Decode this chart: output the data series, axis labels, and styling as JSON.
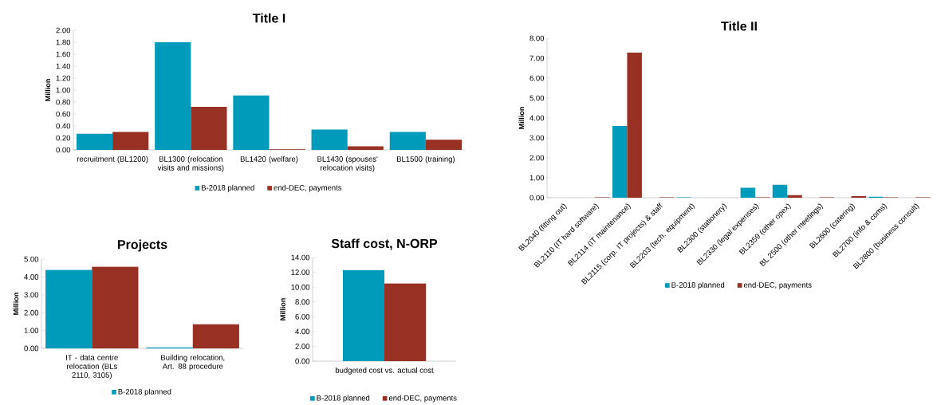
{
  "chart_data": [
    {
      "type": "bar",
      "title": "Title I",
      "ylabel": "Million",
      "categories": [
        "recruitment (BL1200)",
        "BL1300  (relocation visits and missions)",
        "BL1420 (welfare)",
        "BL1430 (spouses' relocation visits)",
        "BL1500 (training)"
      ],
      "series": [
        {
          "name": "B-2018 planned",
          "color": "#009bbb",
          "values": [
            0.27,
            1.8,
            0.91,
            0.34,
            0.3
          ]
        },
        {
          "name": "end-DEC, payments",
          "color": "#983123",
          "values": [
            0.3,
            0.72,
            0.01,
            0.06,
            0.17
          ]
        }
      ],
      "ylim": [
        0,
        2
      ],
      "yticks": [
        {
          "value": 0,
          "label": "0.00"
        },
        {
          "value": 0.2,
          "label": "0.20"
        },
        {
          "value": 0.4,
          "label": "0.40"
        },
        {
          "value": 0.6,
          "label": "0.60"
        },
        {
          "value": 0.8,
          "label": "0.80"
        },
        {
          "value": 1.0,
          "label": "1.00"
        },
        {
          "value": 1.2,
          "label": "1.20"
        },
        {
          "value": 1.4,
          "label": "1.40"
        },
        {
          "value": 1.6,
          "label": "1.60"
        },
        {
          "value": 1.8,
          "label": "1.80"
        },
        {
          "value": 2.0,
          "label": "2.00"
        }
      ],
      "legend": "bottom"
    },
    {
      "type": "bar",
      "title": "Title II",
      "ylabel": "Million",
      "categories": [
        "BL2040 (fitting out)",
        "BL2110 (IT hard software)",
        "BL2114 (IT maintenance)",
        "BL2115 (corp. IT projects) & staff",
        "BL2203 (tech. equipment)",
        "BL2300 (stationery)",
        "BL2330 (legal expenses)",
        "BL2359 (other opex)",
        "BL 2500 (other meetings)",
        "BL2600 (catering)",
        "BL2700 (info & coms)",
        "BL2800 (business consult)"
      ],
      "series": [
        {
          "name": "B-2018 planned",
          "color": "#009bbb",
          "values": [
            0,
            0,
            3.6,
            0,
            0.02,
            0,
            0.5,
            0.65,
            0,
            0,
            0.05,
            0
          ]
        },
        {
          "name": "end-DEC, payments",
          "color": "#983123",
          "values": [
            0,
            0.02,
            7.28,
            0.02,
            0,
            0,
            0.02,
            0.13,
            0.02,
            0.08,
            0.02,
            0.02
          ]
        }
      ],
      "ylim": [
        0,
        8
      ],
      "yticks": [
        {
          "value": 0,
          "label": "0.00"
        },
        {
          "value": 1,
          "label": "1.00"
        },
        {
          "value": 2,
          "label": "2.00"
        },
        {
          "value": 3,
          "label": "3.00"
        },
        {
          "value": 4,
          "label": "4.00"
        },
        {
          "value": 5,
          "label": "5.00"
        },
        {
          "value": 6,
          "label": "6.00"
        },
        {
          "value": 7,
          "label": "7.00"
        },
        {
          "value": 8,
          "label": "8.00"
        }
      ],
      "legend": "bottom"
    },
    {
      "type": "bar",
      "title": "Projects",
      "ylabel": "Million",
      "categories": [
        "IT - data centre relocation (BLs 2110, 3105)",
        "Building relocation, Art. 88 procedure"
      ],
      "series": [
        {
          "name": "B-2018 planned",
          "color": "#009bbb",
          "values": [
            4.4,
            0.05
          ]
        },
        {
          "color": "#983123",
          "values": [
            4.58,
            1.35
          ]
        }
      ],
      "ylim": [
        0,
        5
      ],
      "yticks": [
        {
          "value": 0,
          "label": "0.00"
        },
        {
          "value": 1,
          "label": "1.00"
        },
        {
          "value": 2,
          "label": "2.00"
        },
        {
          "value": 3,
          "label": "3.00"
        },
        {
          "value": 4,
          "label": "4.00"
        },
        {
          "value": 5,
          "label": "5.00"
        }
      ],
      "legend": "bottom"
    },
    {
      "type": "bar",
      "title": "Staff cost, N-ORP",
      "ylabel": "Million",
      "categories": [
        "budgeted cost vs. actual cost"
      ],
      "series": [
        {
          "name": "B-2018 planned",
          "color": "#009bbb",
          "values": [
            12.3
          ]
        },
        {
          "name": "end-DEC, payments",
          "color": "#983123",
          "values": [
            10.5
          ]
        }
      ],
      "ylim": [
        0,
        14
      ],
      "yticks": [
        {
          "value": 0,
          "label": "0.00"
        },
        {
          "value": 2,
          "label": "2.00"
        },
        {
          "value": 4,
          "label": "4.00"
        },
        {
          "value": 6,
          "label": "6.00"
        },
        {
          "value": 8,
          "label": "8.00"
        },
        {
          "value": 10,
          "label": "10.00"
        },
        {
          "value": 12,
          "label": "12.00"
        },
        {
          "value": 14,
          "label": "14.00"
        }
      ],
      "legend": "bottom"
    }
  ]
}
